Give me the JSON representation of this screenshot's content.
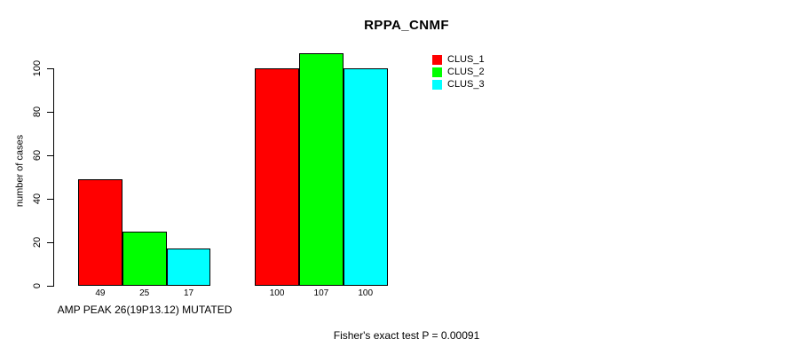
{
  "chart_data": {
    "type": "bar",
    "title": "RPPA_CNMF",
    "ylabel": "number of cases",
    "yticks": [
      0,
      20,
      40,
      60,
      80,
      100
    ],
    "ylim": [
      0,
      110
    ],
    "grid": false,
    "legend_position": "top-right",
    "categories": [
      "AMP PEAK 26(19P13.12) MUTATED",
      ""
    ],
    "series": [
      {
        "name": "CLUS_1",
        "color": "#ff0000",
        "values": [
          49,
          100
        ]
      },
      {
        "name": "CLUS_2",
        "color": "#00ff00",
        "values": [
          25,
          107
        ]
      },
      {
        "name": "CLUS_3",
        "color": "#00ffff",
        "values": [
          17,
          100
        ]
      }
    ],
    "bar_value_labels_shown": true,
    "annotation": "Fisher's exact test P = 0.00091"
  },
  "colors": {
    "background": "#ffffff",
    "axis": "#000000",
    "text": "#000000",
    "bar_border": "#000000"
  }
}
